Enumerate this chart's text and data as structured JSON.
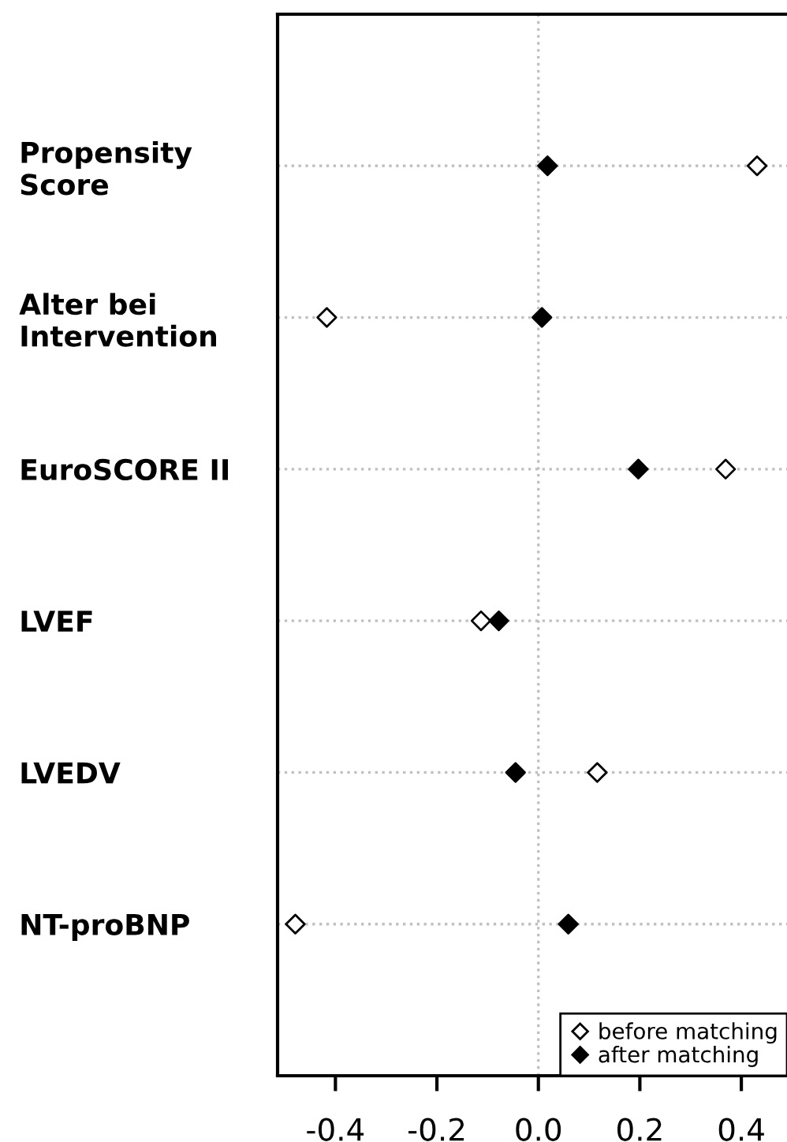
{
  "chart_data": {
    "type": "scatter",
    "orientation": "horizontal",
    "categories": [
      "Propensity\nScore",
      "Alter bei\nIntervention",
      "EuroSCORE II",
      "LVEF",
      "LVEDV",
      "NT-proBNP"
    ],
    "series": [
      {
        "name": "before matching",
        "color": "#ffffff",
        "values": [
          0.431,
          -0.417,
          0.369,
          -0.113,
          0.116,
          -0.479
        ]
      },
      {
        "name": "after matching",
        "color": "#000000",
        "values": [
          0.018,
          0.007,
          0.197,
          -0.078,
          -0.045,
          0.059
        ]
      }
    ],
    "xlim": [
      -0.514,
      0.49
    ],
    "xticks": [
      {
        "value": -0.4,
        "label": "-0.4"
      },
      {
        "value": -0.2,
        "label": "-0.2"
      },
      {
        "value": 0,
        "label": "0.0"
      },
      {
        "value": 0.2,
        "label": "0.2"
      },
      {
        "value": 0.4,
        "label": "0.4"
      }
    ],
    "ref_lines": [
      {
        "axis": "x",
        "value": 0,
        "color": "#c0c0c0",
        "line_style": "dotted"
      }
    ],
    "grid": "y",
    "marker": "diamond",
    "legend": "bottom right"
  }
}
